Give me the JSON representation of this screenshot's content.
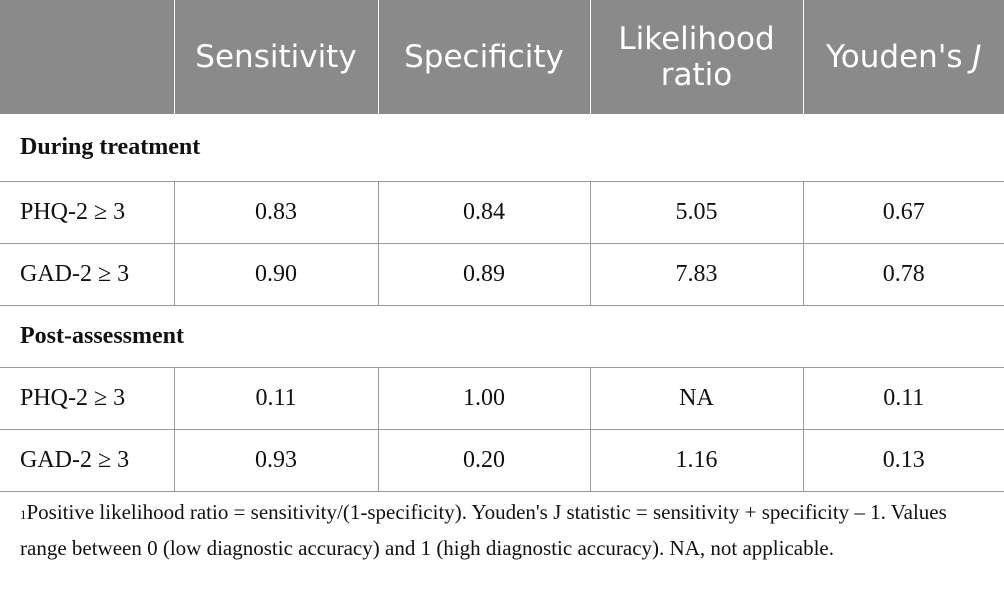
{
  "table": {
    "headers": [
      {
        "text": ""
      },
      {
        "text": "Sensitivity"
      },
      {
        "text": "Specificity"
      },
      {
        "text": "Likelihood ratio"
      },
      {
        "text": "Youden's",
        "italic": "J"
      }
    ],
    "sections": [
      {
        "title": "During treatment",
        "rows": [
          {
            "label": "PHQ-2 ≥ 3",
            "sensitivity": "0.83",
            "specificity": "0.84",
            "likelihood_ratio": "5.05",
            "youdens_j": "0.67"
          },
          {
            "label": "GAD-2 ≥ 3",
            "sensitivity": "0.90",
            "specificity": "0.89",
            "likelihood_ratio": "7.83",
            "youdens_j": "0.78"
          }
        ]
      },
      {
        "title": "Post-assessment",
        "rows": [
          {
            "label": "PHQ-2 ≥ 3",
            "sensitivity": "0.11",
            "specificity": "1.00",
            "likelihood_ratio": "NA",
            "youdens_j": "0.11"
          },
          {
            "label": "GAD-2 ≥ 3",
            "sensitivity": "0.93",
            "specificity": "0.20",
            "likelihood_ratio": "1.16",
            "youdens_j": "0.13"
          }
        ]
      }
    ]
  },
  "footnote": {
    "marker": "1",
    "text": "Positive likelihood ratio = sensitivity/(1-specificity). Youden's J statistic = sensitivity + specificity – 1. Values range between 0 (low diagnostic accuracy) and 1 (high diagnostic accuracy). NA, not applicable."
  }
}
